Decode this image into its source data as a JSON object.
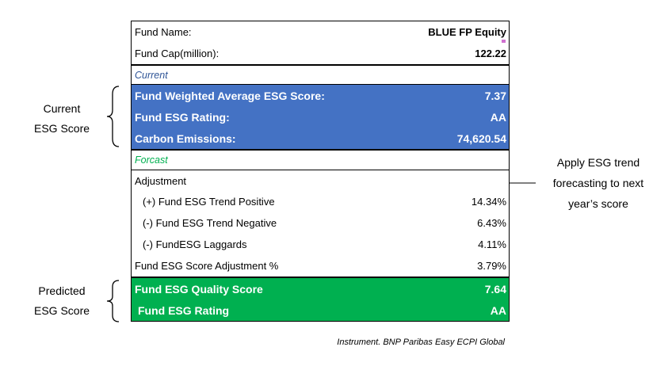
{
  "header": {
    "fund_name_label": "Fund Name:",
    "fund_name_value": "BLUE FP Equity",
    "fund_cap_label": "Fund Cap(million):",
    "fund_cap_value": "122.22"
  },
  "current": {
    "section_label": "Current",
    "rows": [
      {
        "label": "Fund Weighted Average ESG Score:",
        "value": "7.37"
      },
      {
        "label": "Fund ESG Rating:",
        "value": "AA"
      },
      {
        "label": "Carbon Emissions:",
        "value": "74,620.54"
      }
    ]
  },
  "forecast": {
    "section_label": "Forcast",
    "adjustment_label": "Adjustment",
    "items": [
      {
        "label": "(+)  Fund ESG Trend Positive",
        "value": "14.34%"
      },
      {
        "label": "(-)  Fund ESG Trend Negative",
        "value": "6.43%"
      },
      {
        "label": "(-)  FundESG Laggards",
        "value": "4.11%"
      }
    ],
    "score_adjustment_label": "Fund ESG Score Adjustment %",
    "score_adjustment_value": "3.79%"
  },
  "predicted": {
    "rows": [
      {
        "label": "Fund ESG Quality Score",
        "value": "7.64"
      },
      {
        "label": "Fund ESG Rating",
        "value": "AA"
      }
    ]
  },
  "annotations": {
    "current_line1": "Current",
    "current_line2": "ESG Score",
    "predicted_line1": "Predicted",
    "predicted_line2": "ESG Score",
    "note_line1": "Apply ESG trend",
    "note_line2": "forecasting to next",
    "note_line3": "year’s score"
  },
  "source": "Instrument. BNP Paribas Easy ECPI Global",
  "colors": {
    "current_bg": "#4472c4",
    "predicted_bg": "#00b050",
    "current_label": "#2f5597",
    "forecast_label": "#00b050"
  }
}
